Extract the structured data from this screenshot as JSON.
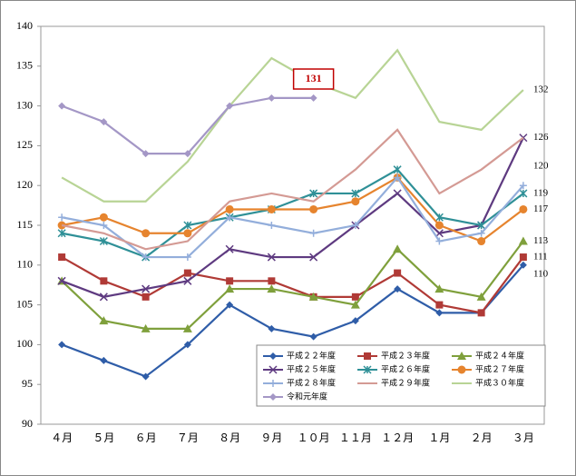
{
  "chart_data": {
    "type": "line",
    "categories": [
      "４月",
      "５月",
      "６月",
      "７月",
      "８月",
      "９月",
      "１０月",
      "１１月",
      "１２月",
      "１月",
      "２月",
      "３月"
    ],
    "ylim": [
      90,
      140
    ],
    "yticks": [
      90,
      95,
      100,
      105,
      110,
      115,
      120,
      125,
      130,
      135,
      140
    ],
    "series": [
      {
        "name": "平成２２年度",
        "color": "#2f5da8",
        "marker": "diamond",
        "values": [
          100,
          98,
          96,
          100,
          105,
          102,
          101,
          103,
          107,
          104,
          104,
          110
        ]
      },
      {
        "name": "平成２３年度",
        "color": "#b03a36",
        "marker": "square",
        "values": [
          111,
          108,
          106,
          109,
          108,
          108,
          106,
          106,
          109,
          105,
          104,
          111
        ]
      },
      {
        "name": "平成２４年度",
        "color": "#7fa03c",
        "marker": "triangle",
        "values": [
          108,
          103,
          102,
          102,
          107,
          107,
          106,
          105,
          112,
          107,
          106,
          113
        ]
      },
      {
        "name": "平成２５年度",
        "color": "#5e3a80",
        "marker": "x",
        "values": [
          108,
          106,
          107,
          108,
          112,
          111,
          111,
          115,
          119,
          114,
          115,
          126
        ]
      },
      {
        "name": "平成２６年度",
        "color": "#2f9097",
        "marker": "star",
        "values": [
          114,
          113,
          111,
          115,
          116,
          117,
          119,
          119,
          122,
          116,
          115,
          119
        ]
      },
      {
        "name": "平成２７年度",
        "color": "#e6842e",
        "marker": "circle",
        "values": [
          115,
          116,
          114,
          114,
          117,
          117,
          117,
          118,
          121,
          115,
          113,
          117
        ]
      },
      {
        "name": "平成２８年度",
        "color": "#93aedb",
        "marker": "plus",
        "values": [
          116,
          115,
          111,
          111,
          116,
          115,
          114,
          115,
          121,
          113,
          114,
          120
        ]
      },
      {
        "name": "平成２９年度",
        "color": "#d49a94",
        "marker": "none",
        "values": [
          115,
          114,
          112,
          113,
          118,
          119,
          118,
          122,
          127,
          119,
          122,
          126
        ]
      },
      {
        "name": "平成３０年度",
        "color": "#b8d495",
        "marker": "none",
        "values": [
          121,
          118,
          118,
          123,
          130,
          136,
          133,
          131,
          137,
          128,
          127,
          132
        ]
      },
      {
        "name": "令和元年度",
        "color": "#a497c6",
        "marker": "diamond",
        "values": [
          130,
          128,
          124,
          124,
          130,
          131,
          131,
          null,
          null,
          null,
          null,
          null
        ]
      }
    ],
    "end_labels": [
      132,
      126,
      120,
      119,
      117,
      113,
      111,
      110
    ],
    "annotation": "131",
    "grid": false
  }
}
